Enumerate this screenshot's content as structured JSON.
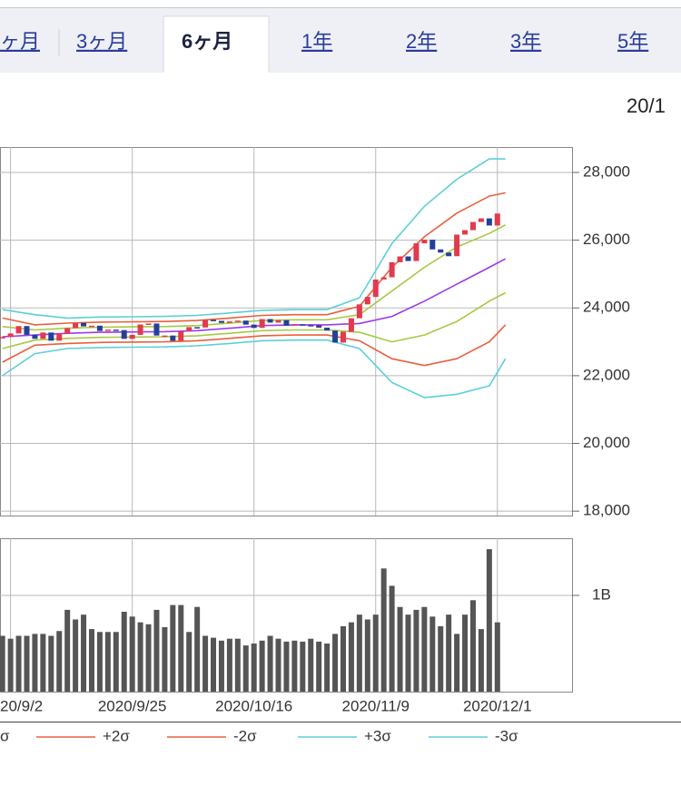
{
  "tabs": [
    "ヶ月",
    "3ヶ月",
    "6ヶ月",
    "1年",
    "2年",
    "3年",
    "5年"
  ],
  "active_tab": 2,
  "date": "20/1",
  "chart_data": [
    {
      "type": "candlestick",
      "x": [
        -1,
        0,
        1,
        2,
        3,
        4,
        5,
        6,
        7,
        8,
        9,
        10,
        11,
        12,
        13,
        14,
        15,
        16,
        17,
        18,
        19,
        20,
        21,
        22,
        23,
        24,
        25,
        26,
        27,
        28,
        29,
        30,
        31,
        32,
        33,
        34,
        35,
        36,
        37,
        38,
        39,
        40,
        41,
        42,
        43,
        44,
        45,
        46,
        47,
        48,
        49,
        50,
        51,
        52,
        53,
        54,
        55,
        56,
        57,
        58,
        59,
        60
      ],
      "open": [
        23100,
        23138,
        23247,
        23465,
        23205,
        23089,
        23274,
        23032,
        23235,
        23406,
        23559,
        23454,
        23475,
        23319,
        23360,
        23346,
        23087,
        23204,
        23511,
        23539,
        23185,
        23185,
        23029,
        23312,
        23433,
        23422,
        23647,
        23619,
        23558,
        23601,
        23626,
        23507,
        23410,
        23671,
        23567,
        23639,
        23474,
        23516,
        23494,
        23485,
        23418,
        23331,
        22977,
        23295,
        23695,
        24105,
        24325,
        24839,
        24905,
        25349,
        25520,
        25385,
        25906,
        26014,
        25728,
        25634,
        25527,
        26165,
        26296,
        26537,
        26644,
        26433
      ],
      "close": [
        23138,
        23247,
        23465,
        23205,
        23089,
        23274,
        23032,
        23235,
        23406,
        23559,
        23454,
        23475,
        23319,
        23360,
        23346,
        23087,
        23204,
        23511,
        23539,
        23185,
        23185,
        23029,
        23312,
        23433,
        23422,
        23647,
        23619,
        23558,
        23601,
        23626,
        23507,
        23410,
        23671,
        23567,
        23639,
        23474,
        23516,
        23494,
        23485,
        23418,
        23331,
        22977,
        23295,
        23695,
        24105,
        24325,
        24839,
        24905,
        25349,
        25520,
        25385,
        25906,
        26014,
        25728,
        25634,
        25527,
        26165,
        26296,
        26537,
        26644,
        26433,
        26787
      ],
      "up_color": "#e23a4e",
      "down_color": "#23409a",
      "xlim": [
        -1.3,
        69.2
      ],
      "xticks": [
        {
          "value": 0,
          "label": "20/9/2"
        },
        {
          "value": 15,
          "label": "2020/9/25"
        },
        {
          "value": 30,
          "label": "2020/10/16"
        },
        {
          "value": 45,
          "label": "2020/11/9"
        },
        {
          "value": 60,
          "label": "2020/12/1"
        }
      ],
      "ylim": [
        17870,
        28750
      ],
      "yticks": [
        {
          "value": 18000,
          "label": "18,000"
        },
        {
          "value": 20000,
          "label": "20,000"
        },
        {
          "value": 22000,
          "label": "22,000"
        },
        {
          "value": 24000,
          "label": "24,000"
        },
        {
          "value": 26000,
          "label": "26,000"
        },
        {
          "value": 28000,
          "label": "28,000"
        }
      ],
      "grid": true,
      "bands": {
        "x": [
          -1,
          3,
          7,
          11,
          15,
          19,
          23,
          27,
          31,
          35,
          39,
          43,
          47,
          51,
          55,
          59,
          61
        ],
        "series": [
          {
            "color": "#9b3be8",
            "values": [
              23150,
              23200,
              23250,
              23280,
              23290,
              23300,
              23330,
              23400,
              23480,
              23500,
              23500,
              23540,
              23750,
              24200,
              24700,
              25200,
              25450
            ]
          },
          {
            "color": "#a6c940",
            "values": [
              23450,
              23350,
              23400,
              23430,
              23440,
              23450,
              23480,
              23550,
              23630,
              23650,
              23650,
              23800,
              24500,
              25200,
              25800,
              26200,
              26450
            ]
          },
          {
            "name": "σ",
            "color": "#a6c940",
            "values": [
              22800,
              23050,
              23100,
              23130,
              23140,
              23150,
              23180,
              23250,
              23330,
              23350,
              23350,
              23280,
              23000,
              23200,
              23600,
              24200,
              24450
            ]
          },
          {
            "name": "+2σ",
            "color": "#e8603c",
            "values": [
              23700,
              23500,
              23550,
              23580,
              23590,
              23600,
              23630,
              23700,
              23780,
              23800,
              23800,
              24050,
              25200,
              26100,
              26800,
              27300,
              27400
            ]
          },
          {
            "name": "-2σ",
            "color": "#e8603c",
            "values": [
              22400,
              22900,
              22950,
              22980,
              22990,
              23000,
              23030,
              23100,
              23180,
              23200,
              23200,
              23030,
              22500,
              22300,
              22500,
              23000,
              23500
            ]
          },
          {
            "name": "+3σ",
            "color": "#5ccfd8",
            "values": [
              23950,
              23800,
              23700,
              23730,
              23740,
              23750,
              23780,
              23850,
              23930,
              23950,
              23950,
              24300,
              25900,
              27000,
              27800,
              28400,
              28400
            ]
          },
          {
            "name": "-3σ",
            "color": "#5ccfd8",
            "values": [
              22000,
              22650,
              22800,
              22830,
              22840,
              22850,
              22880,
              22950,
              23030,
              23050,
              23050,
              22800,
              21800,
              21350,
              21450,
              21700,
              22500
            ]
          }
        ]
      }
    },
    {
      "type": "bar",
      "x": [
        -1,
        0,
        1,
        2,
        3,
        4,
        5,
        6,
        7,
        8,
        9,
        10,
        11,
        12,
        13,
        14,
        15,
        16,
        17,
        18,
        19,
        20,
        21,
        22,
        23,
        24,
        25,
        26,
        27,
        28,
        29,
        30,
        31,
        32,
        33,
        34,
        35,
        36,
        37,
        38,
        39,
        40,
        41,
        42,
        43,
        44,
        45,
        46,
        47,
        48,
        49,
        50,
        51,
        52,
        53,
        54,
        55,
        56,
        57,
        58,
        59,
        60
      ],
      "values": [
        580000000,
        550000000,
        580000000,
        580000000,
        600000000,
        600000000,
        580000000,
        630000000,
        850000000,
        750000000,
        800000000,
        650000000,
        620000000,
        620000000,
        620000000,
        830000000,
        780000000,
        720000000,
        700000000,
        850000000,
        670000000,
        900000000,
        900000000,
        620000000,
        880000000,
        580000000,
        560000000,
        530000000,
        550000000,
        550000000,
        480000000,
        500000000,
        530000000,
        580000000,
        550000000,
        520000000,
        530000000,
        520000000,
        550000000,
        520000000,
        500000000,
        600000000,
        680000000,
        720000000,
        800000000,
        750000000,
        800000000,
        1280000000,
        1100000000,
        880000000,
        800000000,
        850000000,
        880000000,
        780000000,
        680000000,
        800000000,
        600000000,
        800000000,
        950000000,
        650000000,
        1480000000,
        720000000
      ],
      "color": "#555555",
      "xlim": [
        -1.3,
        69.2
      ],
      "ylim": [
        0,
        1594000000
      ],
      "yticks": [
        {
          "value": 1000000000,
          "label": "1B"
        }
      ],
      "grid": true
    }
  ]
}
